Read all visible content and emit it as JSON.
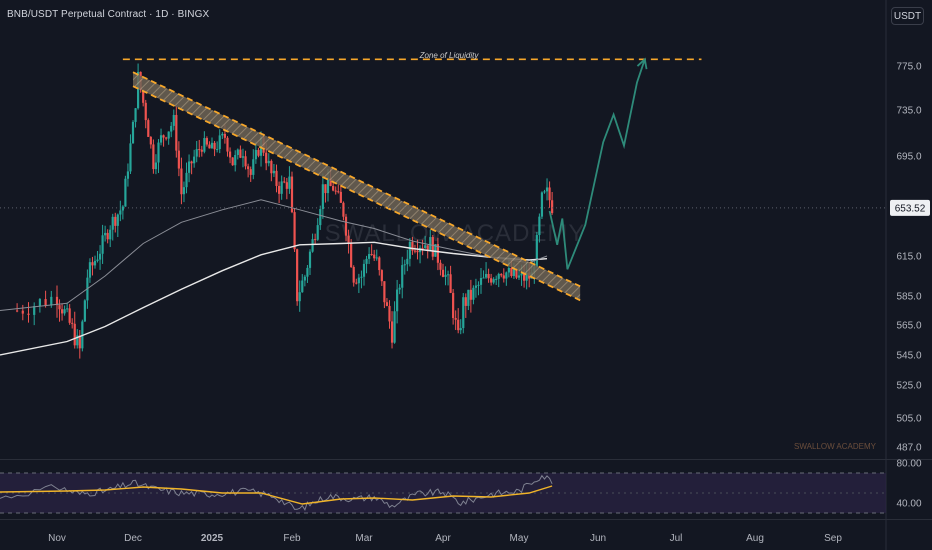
{
  "header": {
    "symbol_line": "BNB/USDT Perpetual Contract · 1D · BINGX",
    "currency_button": "USDT"
  },
  "annotations": {
    "liquidity_label": "Zone of Liquidity",
    "watermark": "SWALLOW ACADEMY",
    "big_watermark": "SWALLOW ACADEMY"
  },
  "colors": {
    "background": "#131722",
    "bullish": "#26a69a",
    "bearish": "#ef5350",
    "trendline": "#f7a72a",
    "projection": "#2e8b7a",
    "ma_white": "#e8e8e8",
    "rsi": "#7e8190",
    "rsi_ma": "#f0b429"
  },
  "chart_data": [
    {
      "type": "line",
      "title": "BNB/USDT Perpetual Contract · 1D · BINGX",
      "x_labels": [
        "Nov",
        "Dec",
        "2025",
        "Feb",
        "Mar",
        "Apr",
        "May",
        "Jun",
        "Jul",
        "Aug",
        "Sep"
      ],
      "y_ticks": [
        775.0,
        735.0,
        695.0,
        615.0,
        585.0,
        565.0,
        545.0,
        525.0,
        505.0,
        487.0
      ],
      "price_label": "653.52",
      "grid": false,
      "series": [
        {
          "kind": "price_path",
          "points": [
            [
              "2024-10-25",
              575
            ],
            [
              "2024-11-01",
              585
            ],
            [
              "2024-11-07",
              562
            ],
            [
              "2024-11-10",
              548
            ],
            [
              "2024-11-13",
              600
            ],
            [
              "2024-11-18",
              620
            ],
            [
              "2024-11-22",
              640
            ],
            [
              "2024-11-27",
              655
            ],
            [
              "2024-12-01",
              720
            ],
            [
              "2024-12-03",
              765
            ],
            [
              "2024-12-06",
              730
            ],
            [
              "2024-12-09",
              690
            ],
            [
              "2024-12-12",
              710
            ],
            [
              "2024-12-17",
              725
            ],
            [
              "2024-12-20",
              665
            ],
            [
              "2024-12-24",
              690
            ],
            [
              "2024-12-28",
              705
            ],
            [
              "2025-01-01",
              700
            ],
            [
              "2025-01-06",
              712
            ],
            [
              "2025-01-09",
              690
            ],
            [
              "2025-01-13",
              700
            ],
            [
              "2025-01-16",
              680
            ],
            [
              "2025-01-20",
              708
            ],
            [
              "2025-01-24",
              680
            ],
            [
              "2025-01-27",
              670
            ],
            [
              "2025-01-31",
              675
            ],
            [
              "2025-02-03",
              585
            ],
            [
              "2025-02-06",
              600
            ],
            [
              "2025-02-10",
              635
            ],
            [
              "2025-02-13",
              670
            ],
            [
              "2025-02-17",
              670
            ],
            [
              "2025-02-21",
              650
            ],
            [
              "2025-02-25",
              600
            ],
            [
              "2025-02-28",
              600
            ],
            [
              "2025-03-03",
              620
            ],
            [
              "2025-03-06",
              610
            ],
            [
              "2025-03-10",
              575
            ],
            [
              "2025-03-12",
              560
            ],
            [
              "2025-03-15",
              595
            ],
            [
              "2025-03-19",
              625
            ],
            [
              "2025-03-23",
              625
            ],
            [
              "2025-03-27",
              625
            ],
            [
              "2025-03-31",
              610
            ],
            [
              "2025-04-03",
              595
            ],
            [
              "2025-04-07",
              555
            ],
            [
              "2025-04-09",
              580
            ],
            [
              "2025-04-12",
              585
            ],
            [
              "2025-04-16",
              595
            ],
            [
              "2025-04-20",
              600
            ],
            [
              "2025-04-24",
              605
            ],
            [
              "2025-04-28",
              600
            ],
            [
              "2025-05-02",
              598
            ],
            [
              "2025-05-06",
              600
            ],
            [
              "2025-05-08",
              625
            ],
            [
              "2025-05-10",
              660
            ],
            [
              "2025-05-12",
              665
            ],
            [
              "2025-05-14",
              655
            ]
          ]
        },
        {
          "kind": "moving_average",
          "points": [
            [
              "2024-10-22",
              545
            ],
            [
              "2024-11-05",
              554
            ],
            [
              "2024-11-20",
              564
            ],
            [
              "2024-12-05",
              577
            ],
            [
              "2024-12-20",
              590
            ],
            [
              "2025-01-05",
              604
            ],
            [
              "2025-01-20",
              616
            ],
            [
              "2025-02-04",
              624
            ],
            [
              "2025-02-20",
              625
            ],
            [
              "2025-03-05",
              626
            ],
            [
              "2025-03-20",
              621
            ],
            [
              "2025-04-05",
              617
            ],
            [
              "2025-04-20",
              614
            ],
            [
              "2025-05-05",
              612
            ],
            [
              "2025-05-12",
              613
            ]
          ]
        },
        {
          "kind": "moving_average",
          "points": [
            [
              "2024-10-22",
              575
            ],
            [
              "2024-11-05",
              580
            ],
            [
              "2024-11-20",
              600
            ],
            [
              "2024-12-05",
              625
            ],
            [
              "2024-12-20",
              642
            ],
            [
              "2025-01-05",
              652
            ],
            [
              "2025-01-20",
              660
            ],
            [
              "2025-02-04",
              652
            ],
            [
              "2025-02-20",
              643
            ],
            [
              "2025-03-05",
              637
            ],
            [
              "2025-03-20",
              627
            ],
            [
              "2025-04-05",
              620
            ],
            [
              "2025-04-20",
              614
            ],
            [
              "2025-05-05",
              610
            ],
            [
              "2025-05-12",
              615
            ]
          ]
        }
      ],
      "trendline_channel": [
        [
          "2024-12-01",
          763
        ],
        [
          "2025-05-25",
          587
        ]
      ],
      "liquidity_level": 781,
      "projection_path": [
        [
          "2025-05-13",
          651
        ],
        [
          "2025-05-16",
          624
        ],
        [
          "2025-05-18",
          645
        ],
        [
          "2025-05-20",
          605
        ],
        [
          "2025-05-27",
          640
        ],
        [
          "2025-06-03",
          707
        ],
        [
          "2025-06-07",
          731
        ],
        [
          "2025-06-11",
          704
        ],
        [
          "2025-06-16",
          760
        ],
        [
          "2025-06-19",
          781
        ]
      ]
    },
    {
      "type": "line",
      "title": "",
      "y_ticks": [
        80.0,
        40.0
      ],
      "upper_band": 70,
      "lower_band": 30,
      "series": [
        {
          "kind": "rsi",
          "points": [
            [
              "2024-10-22",
              45
            ],
            [
              "2024-11-01",
              56
            ],
            [
              "2024-11-10",
              49
            ],
            [
              "2024-11-20",
              52
            ],
            [
              "2024-12-01",
              60
            ],
            [
              "2024-12-10",
              54
            ],
            [
              "2024-12-20",
              50
            ],
            [
              "2025-01-01",
              49
            ],
            [
              "2025-01-15",
              52
            ],
            [
              "2025-01-25",
              47
            ],
            [
              "2025-02-03",
              33
            ],
            [
              "2025-02-15",
              47
            ],
            [
              "2025-02-25",
              44
            ],
            [
              "2025-03-05",
              46
            ],
            [
              "2025-03-12",
              37
            ],
            [
              "2025-03-22",
              49
            ],
            [
              "2025-04-01",
              51
            ],
            [
              "2025-04-08",
              40
            ],
            [
              "2025-04-20",
              49
            ],
            [
              "2025-05-01",
              52
            ],
            [
              "2025-05-10",
              68
            ],
            [
              "2025-05-14",
              62
            ]
          ]
        },
        {
          "kind": "rsi_ma",
          "points": [
            [
              "2024-10-22",
              51
            ],
            [
              "2024-11-05",
              52
            ],
            [
              "2024-11-20",
              53
            ],
            [
              "2024-12-05",
              56
            ],
            [
              "2024-12-20",
              54
            ],
            [
              "2025-01-05",
              50
            ],
            [
              "2025-01-20",
              50
            ],
            [
              "2025-02-05",
              39
            ],
            [
              "2025-02-20",
              44
            ],
            [
              "2025-03-05",
              45
            ],
            [
              "2025-03-20",
              43
            ],
            [
              "2025-04-05",
              47
            ],
            [
              "2025-04-20",
              46
            ],
            [
              "2025-05-05",
              50
            ],
            [
              "2025-05-14",
              57
            ]
          ]
        }
      ]
    }
  ]
}
